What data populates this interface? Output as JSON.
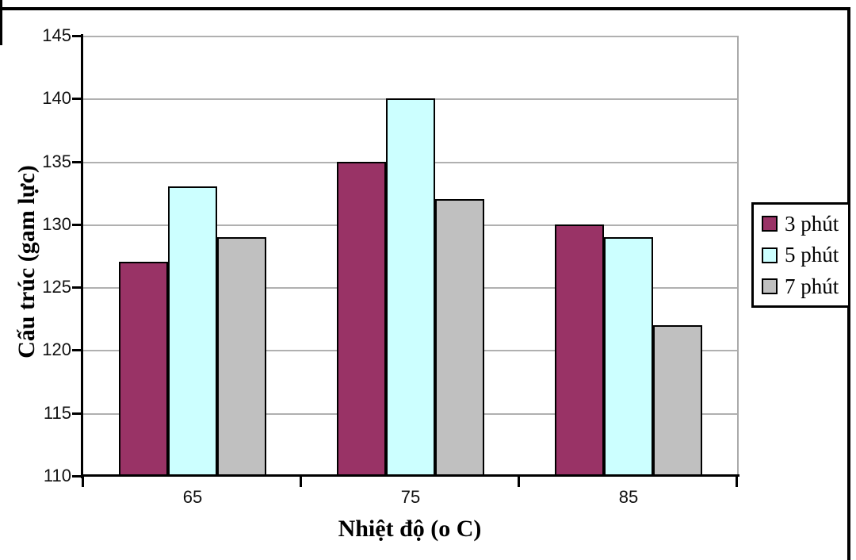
{
  "figure": {
    "background": "#ffffff",
    "frame_color": "#000000"
  },
  "chart_data": {
    "type": "bar",
    "title": "",
    "categories": [
      "65",
      "75",
      "85"
    ],
    "series": [
      {
        "name": "3 phút",
        "color": "#993366",
        "values": [
          127,
          135,
          130
        ]
      },
      {
        "name": "5 phút",
        "color": "#ccffff",
        "values": [
          133,
          140,
          129
        ]
      },
      {
        "name": "7 phút",
        "color": "#c0c0c0",
        "values": [
          129,
          132,
          122
        ]
      }
    ],
    "xlabel": "Nhiệt độ (o C)",
    "ylabel": "Cấu trúc (gam lực)",
    "ylim": [
      110,
      145
    ],
    "ytick_step": 5,
    "ytick_labels": [
      "110",
      "115",
      "120",
      "125",
      "130",
      "135",
      "140",
      "145"
    ],
    "grid": true,
    "gridline_color": "#b0b0b0",
    "axis_color": "#000000",
    "bar_border_color": "#000000",
    "legend_position": "right"
  }
}
